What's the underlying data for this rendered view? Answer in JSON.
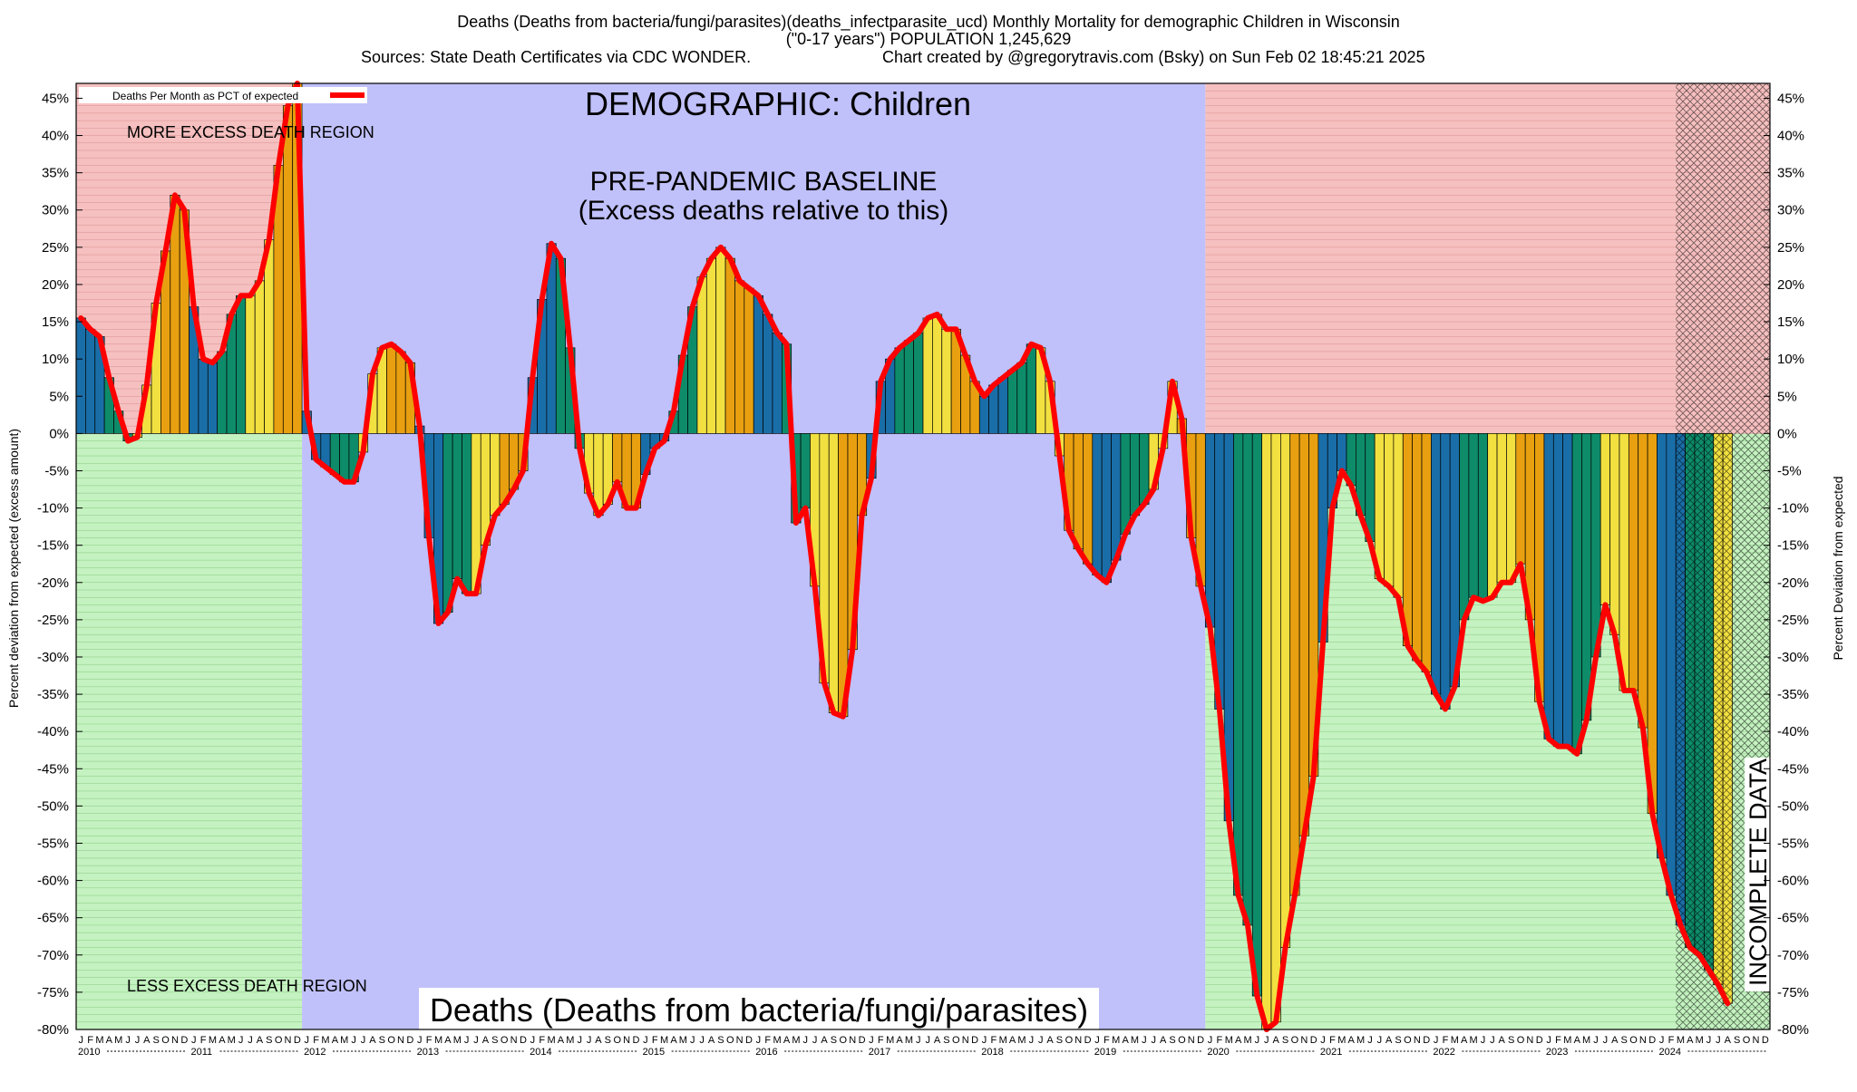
{
  "header": {
    "line1": "Deaths (Deaths from bacteria/fungi/parasites)(deaths_infectparasite_ucd) Monthly Mortality for demographic Children in Wisconsin",
    "line2": "(\"0-17 years\") POPULATION 1,245,629",
    "line3_left": "Sources: State Death Certificates via CDC WONDER.",
    "line3_right": "Chart created by @gregorytravis.com (Bsky) on Sun Feb 02 18:45:21 2025"
  },
  "annotations": {
    "demographic": "DEMOGRAPHIC: Children",
    "baseline_line1": "PRE-PANDEMIC BASELINE",
    "baseline_line2": "(Excess deaths relative to this)",
    "more_excess": "MORE EXCESS DEATH REGION",
    "less_excess": "LESS EXCESS DEATH REGION",
    "bottom_title": "Deaths (Deaths from bacteria/fungi/parasites)",
    "incomplete": "INCOMPLETE DATA"
  },
  "colors": {
    "more_region": "#f6c0c0",
    "less_region": "#c4f2c0",
    "baseline_region": "#c0c0fa",
    "line": "#ff0000",
    "bar_palette": [
      "#1a6ea8",
      "#0e8c6a",
      "#f2e040",
      "#e8a010"
    ]
  },
  "chart_data": {
    "type": "bar",
    "title": "Deaths (Deaths from bacteria/fungi/parasites)",
    "ylabel_left": "Percent deviation from expected (excess amount)",
    "ylabel_right": "Percent Deviation from expected",
    "legend": {
      "label": "Deaths Per Month as PCT of expected",
      "placement": "top-left"
    },
    "ylim": [
      -80,
      47
    ],
    "y_ticks": [
      45,
      40,
      35,
      30,
      25,
      20,
      15,
      10,
      5,
      0,
      -5,
      -10,
      -15,
      -20,
      -25,
      -30,
      -35,
      -40,
      -45,
      -50,
      -55,
      -60,
      -65,
      -70,
      -75,
      -80
    ],
    "y_tick_suffix": "%",
    "start": "2010-01",
    "month_letters": [
      "J",
      "F",
      "M",
      "A",
      "M",
      "J",
      "J",
      "A",
      "S",
      "O",
      "N",
      "D"
    ],
    "years": [
      "2010",
      "2011",
      "2012",
      "2013",
      "2014",
      "2015",
      "2016",
      "2017",
      "2018",
      "2019",
      "2020",
      "2021",
      "2022",
      "2023",
      "2024"
    ],
    "regions": {
      "baseline_from": "2012-01",
      "baseline_to": "2019-12",
      "incomplete_from": "2024-03"
    },
    "values": [
      15.5,
      14,
      13,
      7.5,
      3,
      -1,
      -0.5,
      6.5,
      17.5,
      24.5,
      32,
      30,
      17,
      10,
      9.5,
      11,
      16,
      18.5,
      18.5,
      20.5,
      26,
      36,
      44,
      47,
      3,
      -3.5,
      -4.5,
      -5.5,
      -6.5,
      -6.5,
      -2.5,
      8,
      11.5,
      12,
      11,
      9.5,
      1,
      -14,
      -25.5,
      -24,
      -19.5,
      -21.5,
      -21.5,
      -15,
      -11,
      -9.5,
      -7.5,
      -5,
      7.5,
      18,
      25.5,
      23.5,
      11.5,
      -2,
      -8,
      -11,
      -9.5,
      -6.5,
      -10,
      -10,
      -5.5,
      -2,
      -1,
      3,
      10.5,
      17,
      21,
      23.5,
      25,
      23.5,
      20.5,
      19.5,
      18.5,
      16,
      13.5,
      12,
      -12,
      -10,
      -20.5,
      -33.5,
      -37.5,
      -38,
      -29,
      -11,
      -6,
      7,
      10,
      11.5,
      12.5,
      13.5,
      15.5,
      16,
      14,
      14,
      10.5,
      7,
      5,
      6.5,
      7.5,
      8.5,
      9.5,
      12,
      11.5,
      7,
      -3,
      -13,
      -15.5,
      -17.5,
      -19,
      -20,
      -17,
      -13.5,
      -11,
      -9.5,
      -7.5,
      -2,
      7,
      2,
      -14,
      -20.5,
      -26,
      -37,
      -52,
      -62,
      -66,
      -75.5,
      -80,
      -79,
      -69,
      -62,
      -54,
      -46,
      -28,
      -10,
      -5,
      -7,
      -11,
      -14.5,
      -19.5,
      -20.5,
      -22,
      -28.5,
      -30.5,
      -32,
      -35,
      -37,
      -34,
      -25,
      -22,
      -22.5,
      -22,
      -20,
      -20,
      -17.5,
      -25,
      -36,
      -41,
      -42,
      -42,
      -43,
      -38.5,
      -30,
      -23,
      -27,
      -34.5,
      -34.5,
      -39.5,
      -51,
      -57,
      -62,
      -66,
      -69,
      -70,
      -72,
      -74,
      -76.5
    ]
  }
}
